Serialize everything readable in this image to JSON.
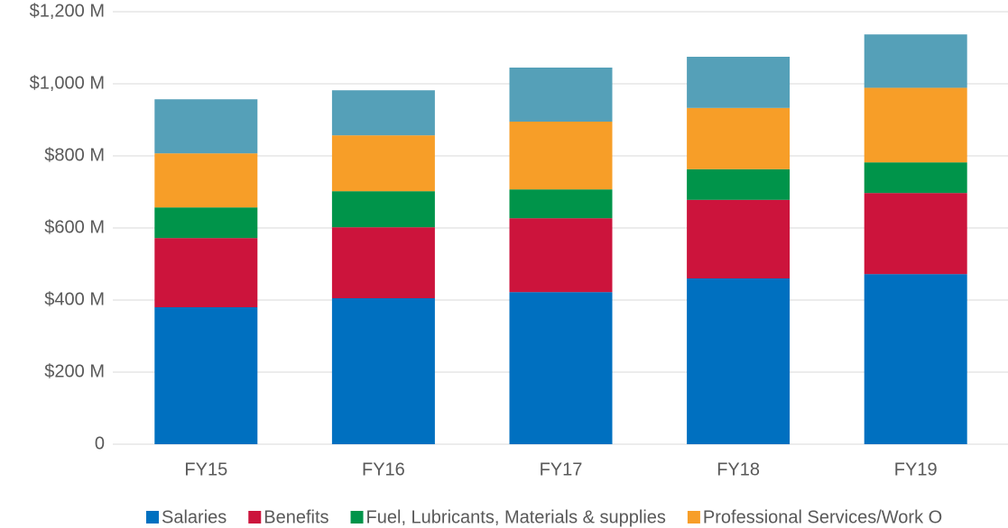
{
  "chart_data": {
    "type": "stacked_bar",
    "categories": [
      "FY15",
      "FY16",
      "FY17",
      "FY18",
      "FY19"
    ],
    "series": [
      {
        "name": "Salaries",
        "color": "#0070c0",
        "values": [
          380,
          405,
          422,
          460,
          472
        ]
      },
      {
        "name": "Benefits",
        "color": "#cc143c",
        "values": [
          192,
          197,
          205,
          218,
          225
        ]
      },
      {
        "name": "Fuel, Lubricants, Materials & supplies",
        "color": "#00944a",
        "values": [
          85,
          100,
          80,
          85,
          85
        ]
      },
      {
        "name": "Professional Services/Work O",
        "color": "#f79e28",
        "values": [
          150,
          155,
          188,
          170,
          207
        ]
      },
      {
        "color": "#55a0b8",
        "values": [
          150,
          125,
          150,
          142,
          148
        ]
      }
    ],
    "ylim": [
      0,
      1200
    ],
    "yticks": [
      0,
      {
        "value": 200,
        "label": "$200  M"
      },
      {
        "value": 400,
        "label": "$400  M"
      },
      {
        "value": 600,
        "label": "$600  M"
      },
      {
        "value": 800,
        "label": "$800  M"
      },
      {
        "value": 1000,
        "label": "$1,000  M"
      },
      {
        "value": 1200,
        "label": "$1,200  M"
      }
    ],
    "grid": true
  }
}
